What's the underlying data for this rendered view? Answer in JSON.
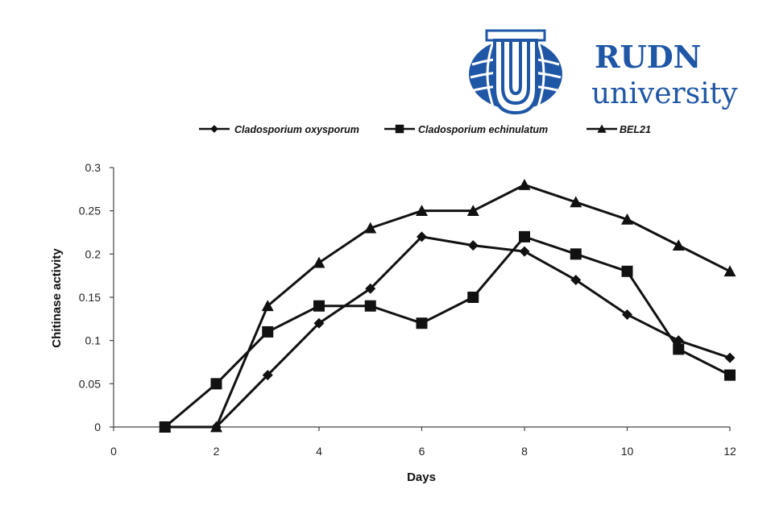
{
  "logo": {
    "line1": "RUDN",
    "line2": "university",
    "color": "#1f56a6"
  },
  "chart_data": {
    "type": "line",
    "xlabel": "Days",
    "ylabel": "Chitinase activity",
    "xlim": [
      0,
      12
    ],
    "ylim": [
      0,
      0.3
    ],
    "xticks": [
      "0",
      "2",
      "4",
      "6",
      "8",
      "10",
      "12"
    ],
    "yticks": [
      "0",
      "0.05",
      "0.1",
      "0.15",
      "0.2",
      "0.25",
      "0.3"
    ],
    "grid": false,
    "legend_position": "top",
    "series": [
      {
        "name": "Cladosporium oxysporum",
        "marker": "diamond",
        "x": [
          1,
          2,
          3,
          4,
          5,
          6,
          7,
          8,
          9,
          10,
          11,
          12
        ],
        "y": [
          0,
          0,
          0.06,
          0.12,
          0.16,
          0.22,
          0.21,
          0.203,
          0.17,
          0.13,
          0.1,
          0.08
        ]
      },
      {
        "name": "Cladosporium echinulatum",
        "marker": "square",
        "x": [
          1,
          2,
          3,
          4,
          5,
          6,
          7,
          8,
          9,
          10,
          11,
          12
        ],
        "y": [
          0,
          0.05,
          0.11,
          0.14,
          0.14,
          0.12,
          0.15,
          0.22,
          0.2,
          0.18,
          0.09,
          0.06
        ]
      },
      {
        "name": "BEL21",
        "marker": "triangle",
        "x": [
          1,
          2,
          3,
          4,
          5,
          6,
          7,
          8,
          9,
          10,
          11,
          12
        ],
        "y": [
          0,
          0,
          0.14,
          0.19,
          0.23,
          0.25,
          0.25,
          0.28,
          0.26,
          0.24,
          0.21,
          0.18
        ]
      }
    ]
  }
}
